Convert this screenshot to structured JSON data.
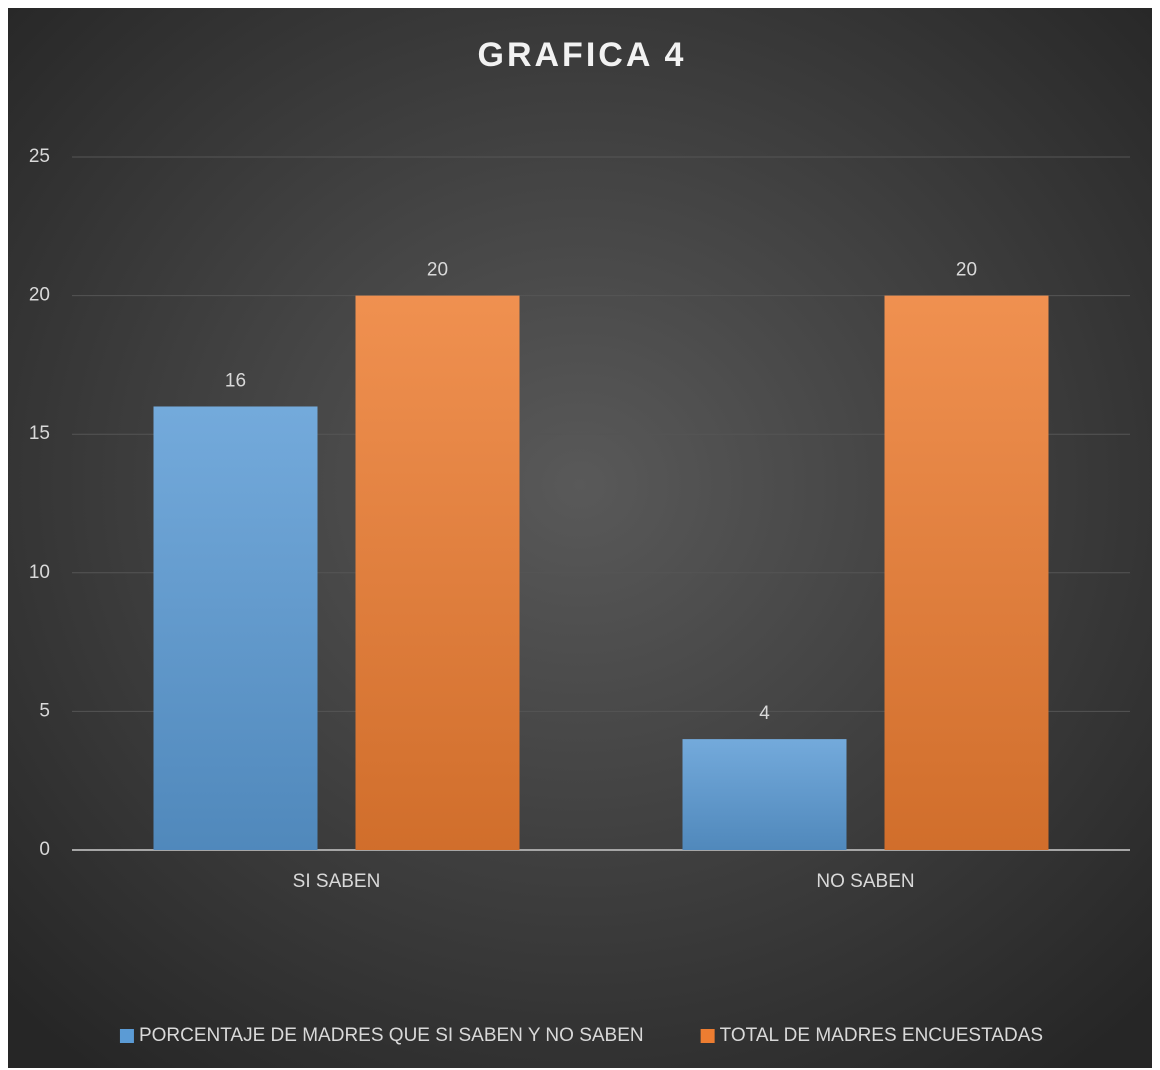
{
  "chart_data": {
    "type": "bar",
    "title": "GRAFICA 4",
    "categories": [
      "SI SABEN",
      "NO SABEN"
    ],
    "series": [
      {
        "name": "PORCENTAJE DE MADRES QUE SI SABEN Y NO SABEN",
        "color": "#5b9bd5",
        "values": [
          16,
          4
        ]
      },
      {
        "name": "TOTAL DE MADRES ENCUESTADAS",
        "color": "#ed7d31",
        "values": [
          20,
          20
        ]
      }
    ],
    "ylim": [
      0,
      25
    ],
    "yticks": [
      0,
      5,
      10,
      15,
      20,
      25
    ],
    "grid": true,
    "legend": "bottom"
  }
}
